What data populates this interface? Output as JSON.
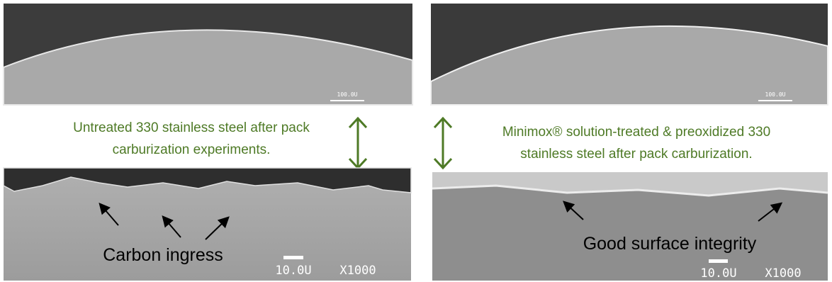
{
  "left": {
    "top_scale": "100.0U",
    "caption": [
      "Untreated 330 stainless steel after pack",
      "carburization experiments."
    ],
    "bottom_annotation": "Carbon ingress",
    "bottom_scale": "10.0U",
    "bottom_magnification": "X1000"
  },
  "right": {
    "top_scale": "100.0U",
    "caption": [
      "Minimox® solution-treated & preoxidized 330",
      "stainless steel after pack carburization."
    ],
    "bottom_annotation": "Good surface integrity",
    "bottom_scale": "10.0U",
    "bottom_magnification": "X1000"
  }
}
